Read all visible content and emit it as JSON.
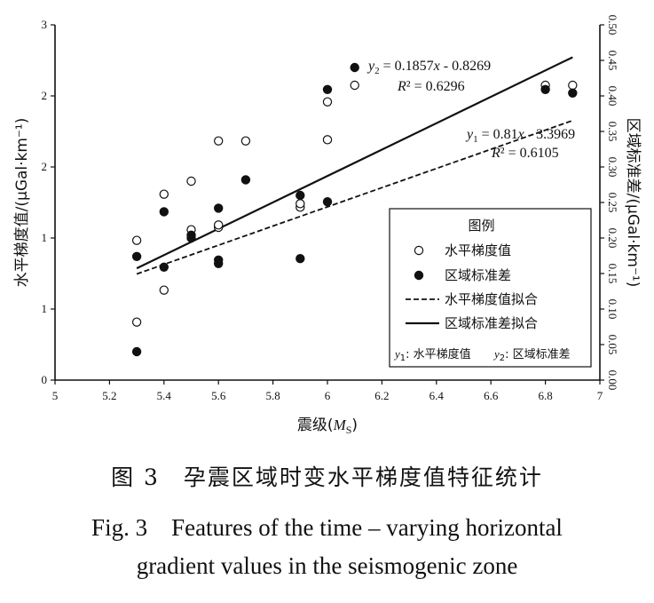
{
  "chart_data": {
    "type": "scatter",
    "xlabel": "震级(Ms)",
    "xlabel_main": "震级(",
    "xlabel_sym": "M",
    "xlabel_sub": "S",
    "xlabel_end": ")",
    "ylabel_left": "水平梯度值/(μGal·km⁻¹)",
    "ylabel_right": "区域标准差/(μGal·km⁻¹)",
    "xlim": [
      5,
      7
    ],
    "ylim_left": [
      0,
      3
    ],
    "ylim_right": [
      0,
      0.5
    ],
    "x_ticks": [
      "5",
      "5.2",
      "5.4",
      "5.6",
      "5.8",
      "6",
      "6.2",
      "6.4",
      "6.6",
      "6.8",
      "7"
    ],
    "y_left_ticks": [
      "0",
      "1",
      "1",
      "2",
      "2",
      "3"
    ],
    "y_right_ticks": [
      "0.00",
      "0.05",
      "0.10",
      "0.15",
      "0.20",
      "0.25",
      "0.30",
      "0.35",
      "0.40",
      "0.45",
      "0.50"
    ],
    "series": [
      {
        "name": "水平梯度值",
        "marker": "open-circle",
        "axis": "left",
        "points": [
          [
            5.3,
            0.49
          ],
          [
            5.3,
            1.18
          ],
          [
            5.4,
            0.76
          ],
          [
            5.4,
            1.57
          ],
          [
            5.5,
            1.68
          ],
          [
            5.5,
            1.27
          ],
          [
            5.6,
            1.29
          ],
          [
            5.6,
            1.31
          ],
          [
            5.6,
            2.02
          ],
          [
            5.7,
            2.02
          ],
          [
            5.9,
            1.46
          ],
          [
            5.9,
            1.49
          ],
          [
            6.0,
            2.03
          ],
          [
            6.0,
            2.35
          ],
          [
            6.1,
            2.49
          ],
          [
            6.8,
            2.49
          ],
          [
            6.9,
            2.49
          ]
        ]
      },
      {
        "name": "区域标准差",
        "marker": "filled-circle",
        "axis": "right",
        "points": [
          [
            5.3,
            0.04
          ],
          [
            5.3,
            0.174
          ],
          [
            5.4,
            0.159
          ],
          [
            5.4,
            0.237
          ],
          [
            5.5,
            0.204
          ],
          [
            5.5,
            0.2
          ],
          [
            5.6,
            0.242
          ],
          [
            5.6,
            0.169
          ],
          [
            5.6,
            0.164
          ],
          [
            5.7,
            0.282
          ],
          [
            5.9,
            0.26
          ],
          [
            5.9,
            0.171
          ],
          [
            6.0,
            0.251
          ],
          [
            6.0,
            0.409
          ],
          [
            6.1,
            0.44
          ],
          [
            6.8,
            0.409
          ],
          [
            6.9,
            0.404
          ]
        ]
      }
    ],
    "fits": [
      {
        "name": "水平梯度值拟合",
        "style": "dashed",
        "axis": "left",
        "slope": 0.81,
        "intercept": -3.3969
      },
      {
        "name": "区域标准差拟合",
        "style": "solid",
        "axis": "right",
        "slope": 0.1857,
        "intercept": -0.8269
      }
    ],
    "annotations": {
      "eq2_var": "y",
      "eq2_sub": "2",
      "eq2_rhs": " = 0.1857x - 0.8269",
      "r2_2": "R² = 0.6296",
      "eq1_var": "y",
      "eq1_sub": "1",
      "eq1_rhs": " = 0.81x - 3.3969",
      "r2_1": "R² = 0.6105"
    },
    "legend": {
      "title": "图例",
      "position": "lower-right",
      "items": [
        "水平梯度值",
        "区域标准差",
        "水平梯度值拟合",
        "区域标准差拟合"
      ],
      "note_y1": "y1: 水平梯度值",
      "note_y2": "y2: 区域标准差"
    }
  },
  "caption": {
    "cn": "图 3　孕震区域时变水平梯度值特征统计",
    "en_line1": "Fig. 3　Features of the time – varying horizontal",
    "en_line2": "gradient values in the seismogenic zone"
  }
}
